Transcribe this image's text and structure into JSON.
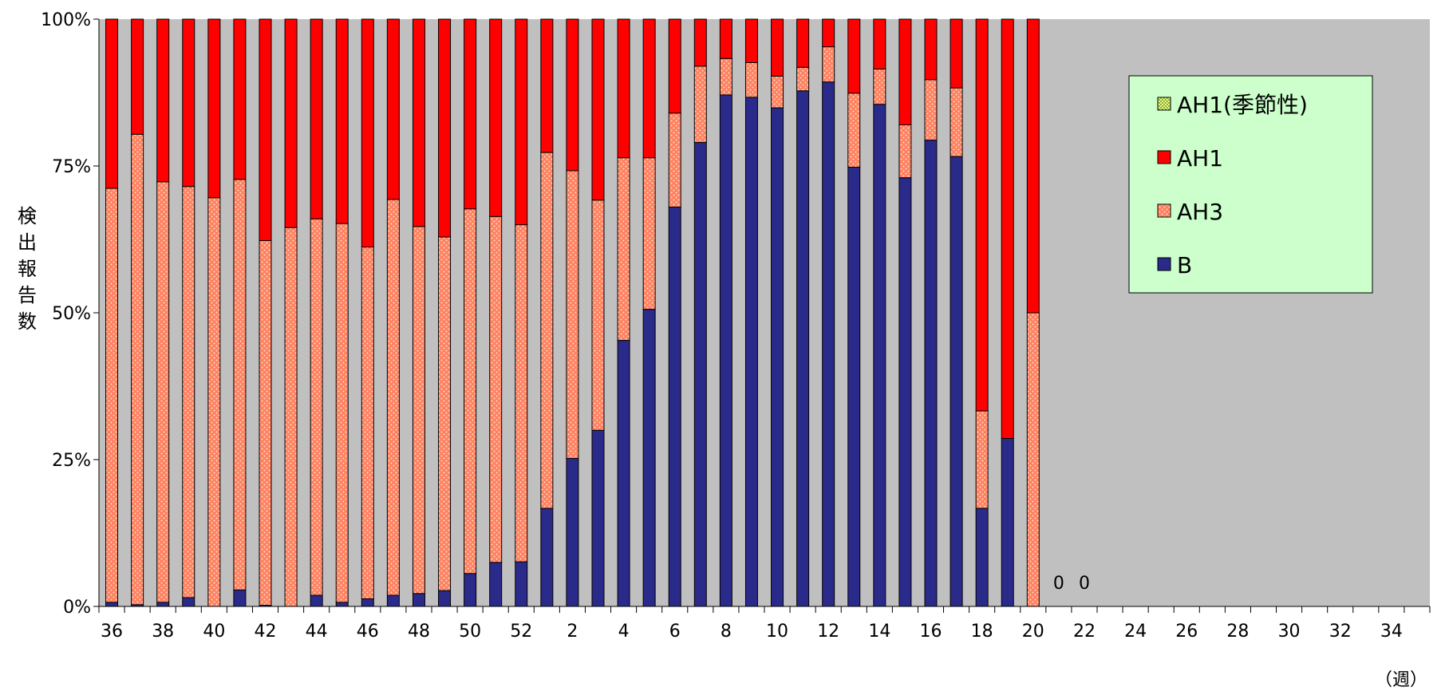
{
  "chart_data": {
    "type": "bar",
    "stacked": true,
    "percent": true,
    "ylabel": "検出報告数",
    "xunit": "（週）",
    "yticks": [
      "0%",
      "25%",
      "50%",
      "75%",
      "100%"
    ],
    "ylim": [
      0,
      100
    ],
    "plot_background": "#c0c0c0",
    "legend_placement": "top-right",
    "weeks": [
      36,
      37,
      38,
      39,
      40,
      41,
      42,
      43,
      44,
      45,
      46,
      47,
      48,
      49,
      50,
      51,
      52,
      1,
      2,
      3,
      4,
      5,
      6,
      7,
      8,
      9,
      10,
      11,
      12,
      13,
      14,
      15,
      16,
      17,
      18,
      19,
      20,
      21,
      22,
      23,
      24,
      25,
      26,
      27,
      28,
      29,
      30,
      31,
      32,
      33,
      34,
      35
    ],
    "xtick_labels": [
      "36",
      "38",
      "40",
      "42",
      "44",
      "46",
      "48",
      "50",
      "52",
      "2",
      "4",
      "6",
      "8",
      "10",
      "12",
      "14",
      "16",
      "18",
      "20",
      "22",
      "24",
      "26",
      "28",
      "30",
      "32",
      "34"
    ],
    "zero_annotations": [
      {
        "week_index": 37,
        "label": "0"
      },
      {
        "week_index": 38,
        "label": "0"
      }
    ],
    "series": [
      {
        "name": "AH1(季節性)",
        "color": "#c8e850",
        "pattern": "check",
        "values": [
          0,
          0,
          0,
          0,
          0,
          0,
          0,
          0,
          0,
          0,
          0,
          0,
          0,
          0,
          0,
          0,
          0,
          0,
          0,
          0,
          0,
          0,
          0,
          0,
          0,
          0,
          0,
          0,
          0,
          0,
          0,
          0,
          0,
          0,
          0,
          0,
          0
        ]
      },
      {
        "name": "AH1",
        "color": "#ff0000",
        "pattern": "solid",
        "values": [
          28.8,
          19.6,
          27.7,
          28.5,
          30.4,
          27.3,
          37.7,
          35.5,
          34.0,
          34.8,
          38.8,
          30.7,
          35.3,
          37.1,
          32.3,
          33.6,
          35.0,
          22.7,
          25.8,
          30.8,
          23.6,
          23.6,
          16.0,
          8.0,
          6.7,
          7.4,
          9.7,
          8.2,
          4.7,
          12.6,
          8.5,
          18.0,
          10.3,
          11.7,
          66.7,
          71.4,
          50.0
        ]
      },
      {
        "name": "AH3",
        "color": "#ff8060",
        "pattern": "dots",
        "values": [
          70.5,
          80.1,
          71.6,
          70.0,
          69.6,
          69.9,
          62.1,
          64.5,
          64.1,
          64.5,
          59.9,
          67.4,
          62.5,
          60.2,
          62.1,
          58.9,
          57.4,
          60.6,
          49.0,
          39.2,
          31.1,
          25.8,
          16.0,
          13.0,
          6.2,
          5.9,
          5.4,
          4.0,
          6.0,
          12.6,
          6.0,
          9.0,
          10.3,
          11.7,
          16.6,
          0,
          50.0
        ]
      },
      {
        "name": "B",
        "color": "#2a2a8a",
        "pattern": "solid",
        "values": [
          0.7,
          0.3,
          0.7,
          1.5,
          0,
          2.8,
          0.2,
          0,
          1.9,
          0.7,
          1.3,
          1.9,
          2.2,
          2.7,
          5.6,
          7.5,
          7.6,
          16.7,
          25.2,
          30.0,
          45.3,
          50.6,
          68.0,
          79.0,
          87.1,
          86.7,
          84.9,
          87.8,
          89.3,
          74.8,
          85.5,
          73.0,
          79.4,
          76.6,
          16.7,
          28.6,
          0
        ]
      }
    ]
  }
}
